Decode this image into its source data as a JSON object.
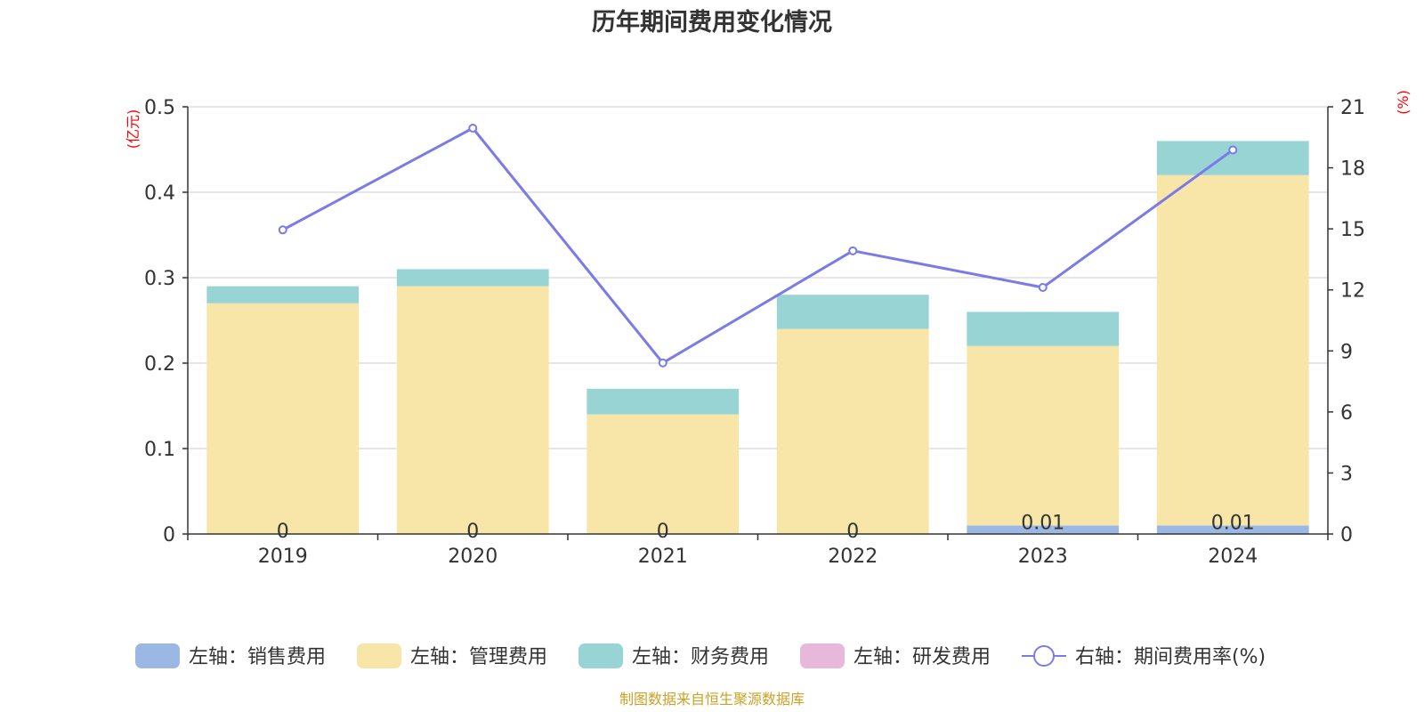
{
  "colors": {
    "sales": "#9bb7e3",
    "admin": "#f8e6a8",
    "finance": "#98d4d4",
    "rnd": "#e8b8da",
    "rate": "#7b7be8",
    "grid": "#cccccc",
    "axis": "#333333",
    "unit": "#ff0000",
    "source": "#c9a227"
  },
  "icons": {
    "legend_bar": "rounded-rect-swatch",
    "legend_line": "line-with-circle-marker"
  },
  "chart_data": {
    "type": "bar",
    "stacked": true,
    "title": "历年期间费用变化情况",
    "categories": [
      "2019",
      "2020",
      "2021",
      "2022",
      "2023",
      "2024"
    ],
    "left_axis": {
      "unit": "(亿元)",
      "ylim": [
        0,
        0.5
      ],
      "ticks": [
        "0",
        "0.1",
        "0.2",
        "0.3",
        "0.4",
        "0.5"
      ]
    },
    "right_axis": {
      "unit": "(%)",
      "ylim": [
        0,
        21
      ],
      "ticks": [
        "0",
        "3",
        "6",
        "9",
        "12",
        "15",
        "18",
        "21"
      ]
    },
    "series": [
      {
        "name": "左轴：销售费用",
        "key": "sales",
        "axis": "left",
        "kind": "bar",
        "values": [
          0,
          0,
          0,
          0,
          0.01,
          0.01
        ],
        "labels": [
          "0",
          "0",
          "0",
          "0",
          "0.01",
          "0.01"
        ]
      },
      {
        "name": "左轴：管理费用",
        "key": "admin",
        "axis": "left",
        "kind": "bar",
        "values": [
          0.27,
          0.29,
          0.14,
          0.24,
          0.21,
          0.41
        ]
      },
      {
        "name": "左轴：财务费用",
        "key": "finance",
        "axis": "left",
        "kind": "bar",
        "values": [
          0.02,
          0.02,
          0.03,
          0.04,
          0.04,
          0.04
        ]
      },
      {
        "name": "左轴：研发费用",
        "key": "rnd",
        "axis": "left",
        "kind": "bar",
        "values": [
          0,
          0,
          0,
          0,
          0,
          0
        ]
      },
      {
        "name": "右轴：期间费用率(%)",
        "key": "rate",
        "axis": "right",
        "kind": "line",
        "values": [
          14.95,
          19.95,
          8.41,
          13.92,
          12.12,
          18.88
        ]
      }
    ],
    "grid": true,
    "legend_position": "bottom",
    "source": "制图数据来自恒生聚源数据库"
  }
}
